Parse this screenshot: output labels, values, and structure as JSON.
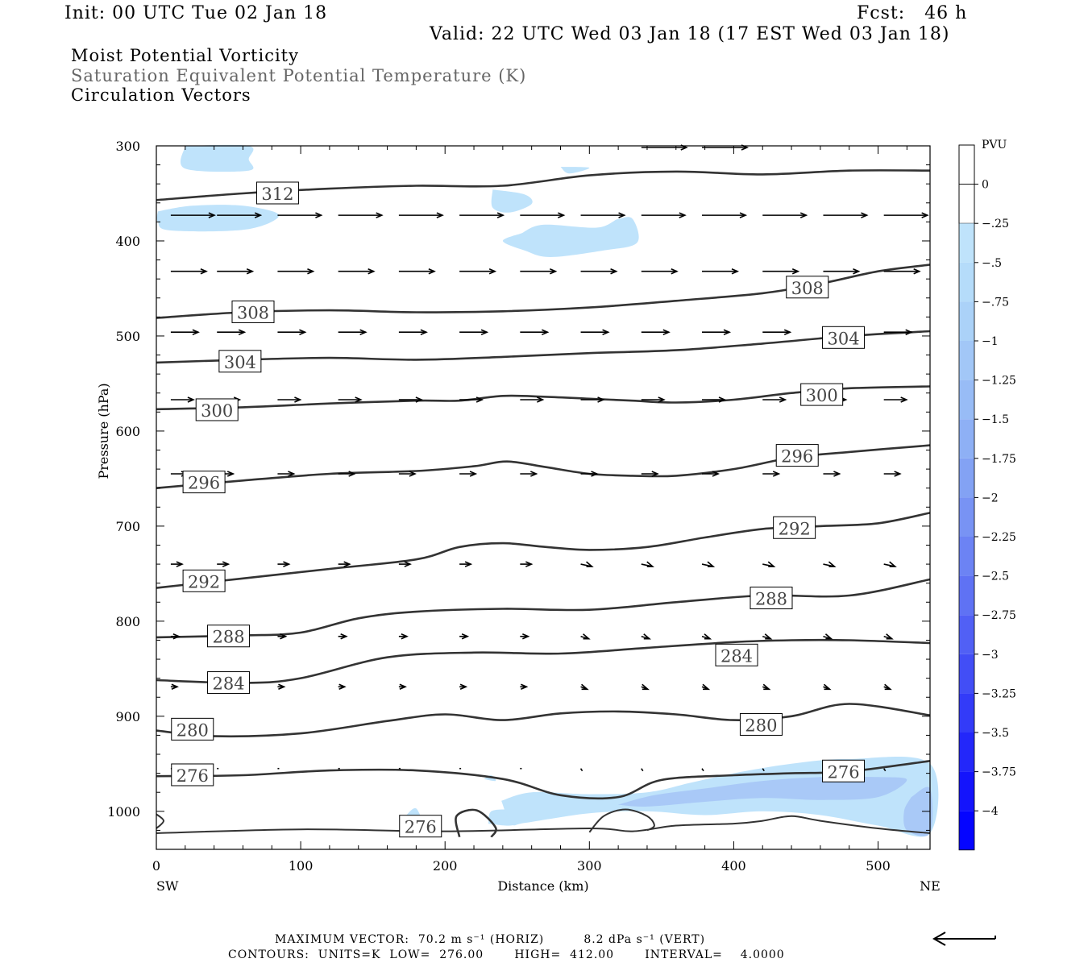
{
  "header": {
    "init": "Init: 00 UTC Tue 02 Jan 18",
    "fcst": "Fcst:   46 h",
    "valid": "Valid: 22 UTC Wed 03 Jan 18 (17 EST Wed 03 Jan 18)"
  },
  "titles": {
    "line1": "Moist Potential Vorticity",
    "line2": "Saturation Equivalent Potential Temperature (K)",
    "line3": "Circulation Vectors"
  },
  "footer": {
    "max_vector": "MAXIMUM VECTOR:  70.2 m s⁻¹ (HORIZ)         8.2 dPa s⁻¹ (VERT)",
    "contours": "CONTOURS:  UNITS=K  LOW=  276.00       HIGH=  412.00       INTERVAL=    4.0000"
  },
  "colors": {
    "contour": "#333333",
    "pv_light": "#bfe3fb",
    "pv_medium": "#a9c9f7"
  },
  "chart_data": {
    "type": "contour-cross-section",
    "xlabel": "Distance (km)",
    "ylabel": "Pressure (hPa)",
    "x_end_labels": {
      "left": "SW",
      "right": "NE"
    },
    "xlim": [
      0,
      536
    ],
    "ylim": [
      1040,
      300
    ],
    "x_ticks": [
      0,
      100,
      200,
      300,
      400,
      500
    ],
    "y_ticks": [
      300,
      400,
      500,
      600,
      700,
      800,
      900,
      1000
    ],
    "colorbar": {
      "title": "PVU",
      "levels": [
        "0",
        "-.25",
        "-.5",
        "-.75",
        "-1",
        "-1.25",
        "-1.5",
        "-1.75",
        "-2",
        "-2.25",
        "-2.5",
        "-2.75",
        "-3",
        "-3.25",
        "-3.5",
        "-3.75",
        "-4"
      ],
      "colors": [
        "#ffffff",
        "#ffffff",
        "#bfe3fb",
        "#b5dcfa",
        "#abd2f8",
        "#a2c7f7",
        "#98bcf6",
        "#8eb0f5",
        "#83a2f4",
        "#7893f4",
        "#6c83f4",
        "#5f72f4",
        "#5160f5",
        "#424ef6",
        "#333bf8",
        "#2327fa",
        "#1414fc",
        "#0505ff"
      ]
    },
    "theta_es_contours": [
      {
        "value": 312,
        "label_at": [
          84,
          350
        ],
        "points": [
          [
            0,
            357
          ],
          [
            60,
            350
          ],
          [
            120,
            345
          ],
          [
            180,
            342
          ],
          [
            240,
            342
          ],
          [
            300,
            331
          ],
          [
            360,
            327
          ],
          [
            420,
            330
          ],
          [
            480,
            326
          ],
          [
            536,
            326
          ]
        ]
      },
      {
        "value": 308,
        "label_at": [
          67,
          475
        ],
        "points": [
          [
            0,
            481
          ],
          [
            60,
            475
          ],
          [
            120,
            473
          ],
          [
            180,
            475
          ],
          [
            240,
            474
          ],
          [
            300,
            470
          ],
          [
            360,
            463
          ],
          [
            420,
            455
          ],
          [
            460,
            445
          ],
          [
            500,
            432
          ],
          [
            536,
            425
          ]
        ]
      },
      {
        "value": 308,
        "label_at": [
          451,
          449
        ],
        "points": []
      },
      {
        "value": 304,
        "label_at": [
          58,
          527
        ],
        "points": [
          [
            0,
            528
          ],
          [
            60,
            525
          ],
          [
            120,
            523
          ],
          [
            180,
            525
          ],
          [
            240,
            522
          ],
          [
            300,
            518
          ],
          [
            360,
            515
          ],
          [
            420,
            508
          ],
          [
            480,
            500
          ],
          [
            536,
            495
          ]
        ]
      },
      {
        "value": 304,
        "label_at": [
          476,
          502
        ],
        "points": []
      },
      {
        "value": 300,
        "label_at": [
          42,
          578
        ],
        "points": [
          [
            0,
            577
          ],
          [
            60,
            575
          ],
          [
            120,
            571
          ],
          [
            180,
            568
          ],
          [
            210,
            568
          ],
          [
            240,
            563
          ],
          [
            270,
            564
          ],
          [
            300,
            566
          ],
          [
            330,
            568
          ],
          [
            360,
            570
          ],
          [
            400,
            567
          ],
          [
            440,
            560
          ],
          [
            480,
            555
          ],
          [
            536,
            553
          ]
        ]
      },
      {
        "value": 300,
        "label_at": [
          461,
          562
        ],
        "points": []
      },
      {
        "value": 296,
        "label_at": [
          33,
          654
        ],
        "points": [
          [
            0,
            660
          ],
          [
            60,
            652
          ],
          [
            120,
            645
          ],
          [
            180,
            642
          ],
          [
            220,
            637
          ],
          [
            243,
            632
          ],
          [
            270,
            638
          ],
          [
            300,
            645
          ],
          [
            330,
            647
          ],
          [
            360,
            647
          ],
          [
            400,
            640
          ],
          [
            440,
            628
          ],
          [
            480,
            622
          ],
          [
            536,
            615
          ]
        ]
      },
      {
        "value": 296,
        "label_at": [
          444,
          626
        ],
        "points": []
      },
      {
        "value": 292,
        "label_at": [
          33,
          758
        ],
        "points": [
          [
            0,
            765
          ],
          [
            60,
            755
          ],
          [
            120,
            745
          ],
          [
            180,
            735
          ],
          [
            210,
            722
          ],
          [
            240,
            718
          ],
          [
            270,
            722
          ],
          [
            300,
            725
          ],
          [
            340,
            722
          ],
          [
            380,
            712
          ],
          [
            420,
            703
          ],
          [
            460,
            700
          ],
          [
            500,
            697
          ],
          [
            536,
            686
          ]
        ]
      },
      {
        "value": 292,
        "label_at": [
          442,
          702
        ],
        "points": []
      },
      {
        "value": 288,
        "label_at": [
          50,
          816
        ],
        "points": [
          [
            0,
            817
          ],
          [
            60,
            815
          ],
          [
            100,
            812
          ],
          [
            140,
            797
          ],
          [
            180,
            790
          ],
          [
            240,
            787
          ],
          [
            300,
            788
          ],
          [
            360,
            780
          ],
          [
            420,
            773
          ],
          [
            480,
            773
          ],
          [
            536,
            756
          ]
        ]
      },
      {
        "value": 288,
        "label_at": [
          426,
          776
        ],
        "points": []
      },
      {
        "value": 284,
        "label_at": [
          50,
          865
        ],
        "points": [
          [
            0,
            862
          ],
          [
            60,
            865
          ],
          [
            100,
            860
          ],
          [
            160,
            838
          ],
          [
            220,
            833
          ],
          [
            280,
            834
          ],
          [
            340,
            828
          ],
          [
            400,
            822
          ],
          [
            440,
            820
          ],
          [
            480,
            820
          ],
          [
            536,
            823
          ]
        ]
      },
      {
        "value": 284,
        "label_at": [
          402,
          836
        ],
        "points": []
      },
      {
        "value": 280,
        "label_at": [
          25,
          914
        ],
        "points": [
          [
            0,
            915
          ],
          [
            40,
            921
          ],
          [
            100,
            918
          ],
          [
            160,
            905
          ],
          [
            200,
            898
          ],
          [
            240,
            904
          ],
          [
            280,
            897
          ],
          [
            320,
            895
          ],
          [
            360,
            898
          ],
          [
            400,
            904
          ],
          [
            440,
            900
          ],
          [
            480,
            887
          ],
          [
            536,
            899
          ]
        ]
      },
      {
        "value": 280,
        "label_at": [
          419,
          909
        ],
        "points": []
      },
      {
        "value": 276,
        "label_at": [
          25,
          962
        ],
        "points": [
          [
            0,
            963
          ],
          [
            60,
            962
          ],
          [
            120,
            957
          ],
          [
            180,
            957
          ],
          [
            240,
            966
          ],
          [
            280,
            983
          ],
          [
            320,
            985
          ],
          [
            350,
            967
          ],
          [
            400,
            962
          ],
          [
            440,
            960
          ],
          [
            480,
            958
          ],
          [
            536,
            947
          ]
        ]
      },
      {
        "value": 276,
        "label_at": [
          476,
          958
        ],
        "points": []
      },
      {
        "value": 276,
        "label_at": [
          183,
          1016
        ],
        "points": [
          [
            210,
            1027
          ],
          [
            208,
            1005
          ],
          [
            222,
            999
          ],
          [
            235,
            1017
          ],
          [
            232,
            1027
          ]
        ]
      }
    ],
    "circulation_vector_rows_hpa": [
      300,
      373,
      432,
      496,
      567,
      645,
      740,
      816,
      869,
      955
    ],
    "circulation_vector_columns_km": [
      10,
      42,
      84,
      126,
      168,
      210,
      252,
      294,
      336,
      378,
      420,
      462,
      504,
      524
    ]
  }
}
